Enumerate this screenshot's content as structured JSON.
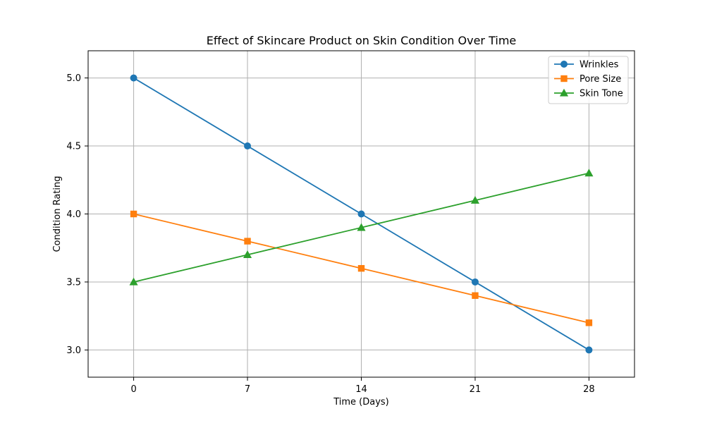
{
  "chart_data": {
    "type": "line",
    "title": "Effect of Skincare Product on Skin Condition Over Time",
    "xlabel": "Time (Days)",
    "ylabel": "Condition Rating",
    "x": [
      0,
      7,
      14,
      21,
      28
    ],
    "x_tick_labels": [
      "0",
      "7",
      "14",
      "21",
      "28"
    ],
    "y_ticks": [
      3.0,
      3.5,
      4.0,
      4.5,
      5.0
    ],
    "y_tick_labels": [
      "3.0",
      "3.5",
      "4.0",
      "4.5",
      "5.0"
    ],
    "xlim": [
      -2.8,
      30.8
    ],
    "ylim": [
      2.8,
      5.2
    ],
    "grid": true,
    "legend_position": "top-right",
    "series": [
      {
        "name": "Wrinkles",
        "values": [
          5.0,
          4.5,
          4.0,
          3.5,
          3.0
        ],
        "color": "#1f77b4",
        "marker": "circle"
      },
      {
        "name": "Pore Size",
        "values": [
          4.0,
          3.8,
          3.6,
          3.4,
          3.2
        ],
        "color": "#ff7f0e",
        "marker": "square"
      },
      {
        "name": "Skin Tone",
        "values": [
          3.5,
          3.7,
          3.9,
          4.1,
          4.3
        ],
        "color": "#2ca02c",
        "marker": "triangle"
      }
    ]
  }
}
